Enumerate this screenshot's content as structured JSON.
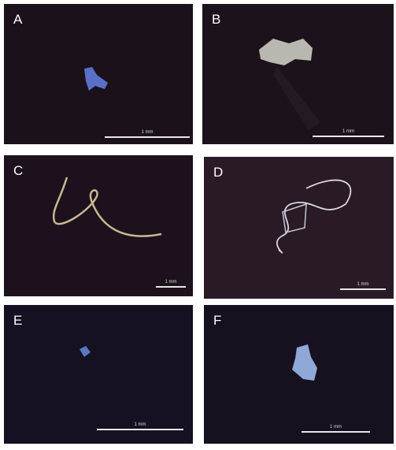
{
  "panels": [
    {
      "label": "A",
      "scale": "1 mm"
    },
    {
      "label": "B",
      "scale": "1 mm"
    },
    {
      "label": "C",
      "scale": "1 mm"
    },
    {
      "label": "D",
      "scale": "1 mm"
    },
    {
      "label": "E",
      "scale": "1 mm"
    },
    {
      "label": "F",
      "scale": "1 mm"
    }
  ]
}
